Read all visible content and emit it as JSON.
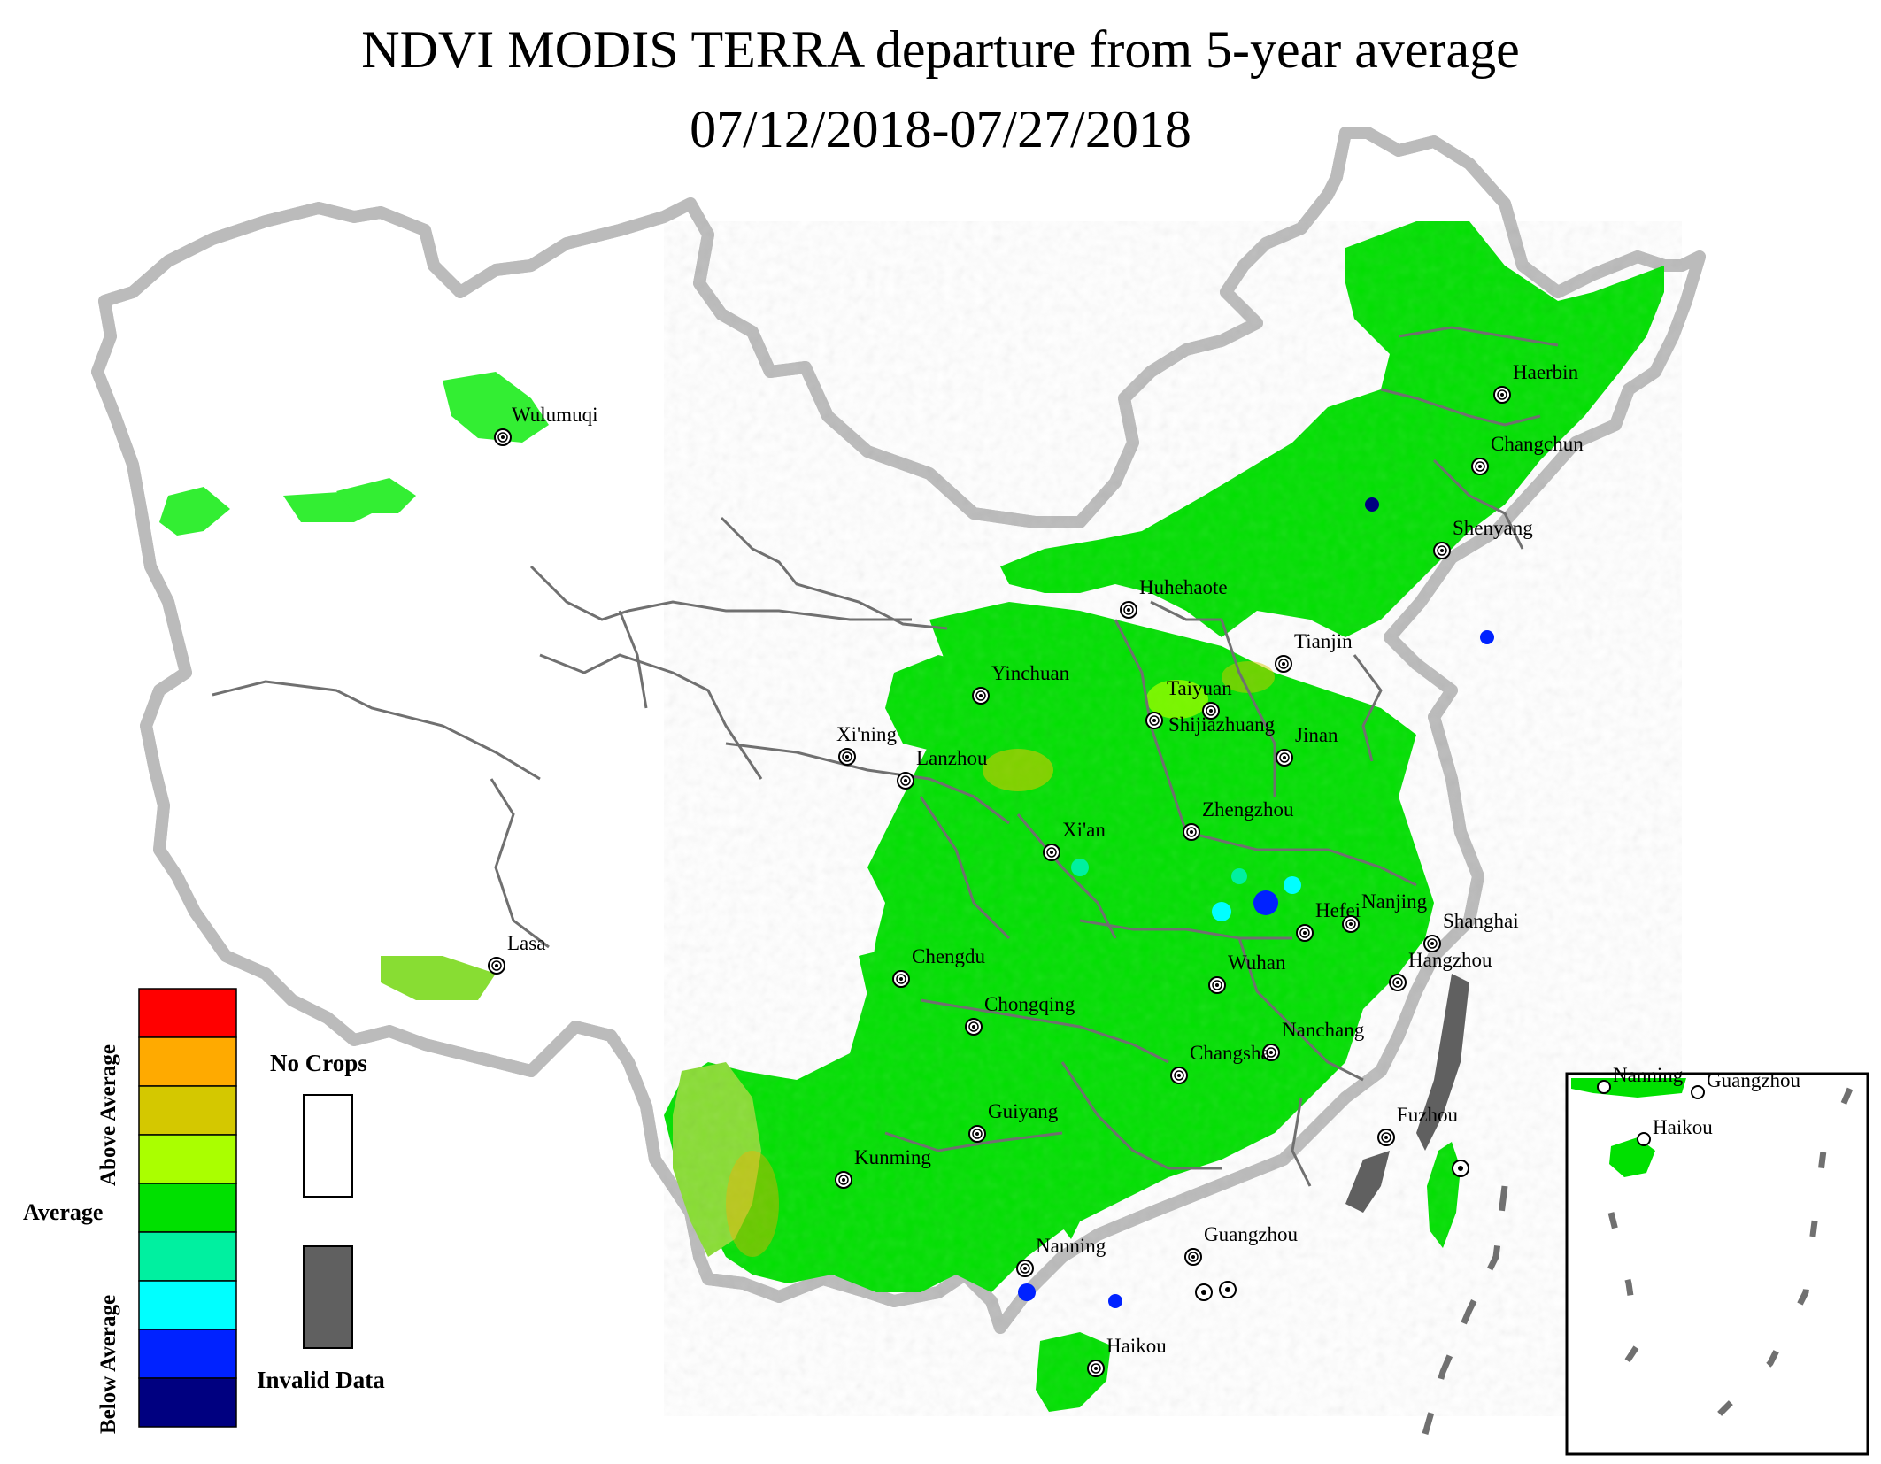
{
  "title": {
    "line1": "NDVI MODIS TERRA departure from 5-year average",
    "line2": "07/12/2018-07/27/2018"
  },
  "legend": {
    "above_label": "Above Average",
    "average_label": "Average",
    "below_label": "Below Average",
    "classes": [
      {
        "color": "#ff0000",
        "level": "above-4"
      },
      {
        "color": "#ffaa00",
        "level": "above-3"
      },
      {
        "color": "#d4c800",
        "level": "above-2"
      },
      {
        "color": "#aaff00",
        "level": "above-1"
      },
      {
        "color": "#00e000",
        "level": "average"
      },
      {
        "color": "#00f0a0",
        "level": "below-1"
      },
      {
        "color": "#00ffff",
        "level": "below-2"
      },
      {
        "color": "#0022ff",
        "level": "below-3"
      },
      {
        "color": "#000080",
        "level": "below-4"
      }
    ],
    "no_crops": {
      "label": "No Crops",
      "color": "#ffffff"
    },
    "invalid": {
      "label": "Invalid Data",
      "color": "#606060"
    }
  },
  "cities": [
    {
      "name": "Wulumuqi"
    },
    {
      "name": "Haerbin"
    },
    {
      "name": "Changchun"
    },
    {
      "name": "Shenyang"
    },
    {
      "name": "Huhehaote"
    },
    {
      "name": "Tianjin"
    },
    {
      "name": "Yinchuan"
    },
    {
      "name": "Taiyuan"
    },
    {
      "name": "Shijiazhuang"
    },
    {
      "name": "Jinan"
    },
    {
      "name": "Xi'ning"
    },
    {
      "name": "Lanzhou"
    },
    {
      "name": "Zhengzhou"
    },
    {
      "name": "Xi'an"
    },
    {
      "name": "Hefei"
    },
    {
      "name": "Nanjing"
    },
    {
      "name": "Shanghai"
    },
    {
      "name": "Lasa"
    },
    {
      "name": "Chengdu"
    },
    {
      "name": "Wuhan"
    },
    {
      "name": "Hangzhou"
    },
    {
      "name": "Chongqing"
    },
    {
      "name": "Nanchang"
    },
    {
      "name": "Changsha"
    },
    {
      "name": "Guiyang"
    },
    {
      "name": "Fuzhou"
    },
    {
      "name": "Kunming"
    },
    {
      "name": "Nanning"
    },
    {
      "name": "Guangzhou"
    },
    {
      "name": "Haikou"
    }
  ],
  "inset": {
    "labels": [
      {
        "name": "Nanning"
      },
      {
        "name": "Guangzhou"
      },
      {
        "name": "Haikou"
      }
    ]
  },
  "colors": {
    "border": "#707070",
    "crop": "#00e000",
    "crop_light": "#33ee33"
  }
}
